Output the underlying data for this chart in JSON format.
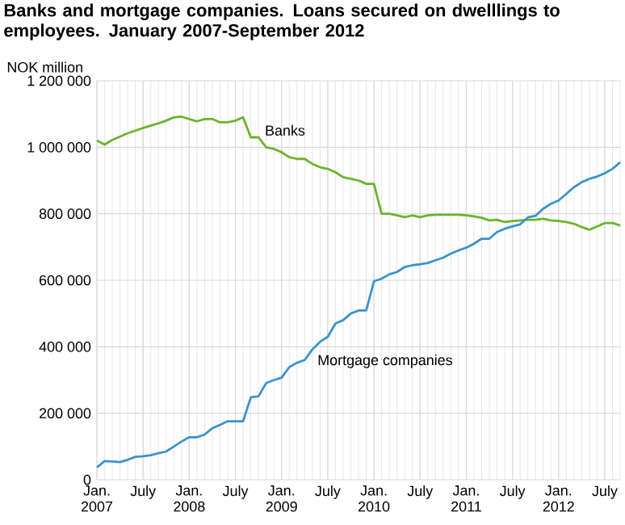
{
  "chart_data": {
    "type": "line",
    "title": "Banks and mortgage companies. Loans secured on dwelllings to employees. January 2007-September 2012",
    "ylabel": "NOK million",
    "x": [
      "2007-01",
      "2007-02",
      "2007-03",
      "2007-04",
      "2007-05",
      "2007-06",
      "2007-07",
      "2007-08",
      "2007-09",
      "2007-10",
      "2007-11",
      "2007-12",
      "2008-01",
      "2008-02",
      "2008-03",
      "2008-04",
      "2008-05",
      "2008-06",
      "2008-07",
      "2008-08",
      "2008-09",
      "2008-10",
      "2008-11",
      "2008-12",
      "2009-01",
      "2009-02",
      "2009-03",
      "2009-04",
      "2009-05",
      "2009-06",
      "2009-07",
      "2009-08",
      "2009-09",
      "2009-10",
      "2009-11",
      "2009-12",
      "2010-01",
      "2010-02",
      "2010-03",
      "2010-04",
      "2010-05",
      "2010-06",
      "2010-07",
      "2010-08",
      "2010-09",
      "2010-10",
      "2010-11",
      "2010-12",
      "2011-01",
      "2011-02",
      "2011-03",
      "2011-04",
      "2011-05",
      "2011-06",
      "2011-07",
      "2011-08",
      "2011-09",
      "2011-10",
      "2011-11",
      "2011-12",
      "2012-01",
      "2012-02",
      "2012-03",
      "2012-04",
      "2012-05",
      "2012-06",
      "2012-07",
      "2012-08",
      "2012-09"
    ],
    "series": [
      {
        "name": "Banks",
        "color": "#6ab42d",
        "values": [
          1020000,
          1008000,
          1022000,
          1032000,
          1042000,
          1050000,
          1058000,
          1065000,
          1072000,
          1080000,
          1090000,
          1092000,
          1085000,
          1078000,
          1085000,
          1085000,
          1075000,
          1075000,
          1080000,
          1090000,
          1030000,
          1030000,
          1000000,
          995000,
          985000,
          970000,
          965000,
          965000,
          950000,
          940000,
          935000,
          925000,
          910000,
          905000,
          900000,
          890000,
          890000,
          800000,
          800000,
          795000,
          790000,
          795000,
          790000,
          795000,
          797000,
          797000,
          797000,
          797000,
          795000,
          792000,
          788000,
          780000,
          782000,
          775000,
          778000,
          780000,
          782000,
          782000,
          785000,
          780000,
          778000,
          775000,
          770000,
          760000,
          752000,
          762000,
          772000,
          772000,
          765000
        ]
      },
      {
        "name": "Mortgage companies",
        "color": "#3a93cf",
        "values": [
          37000,
          56000,
          55000,
          53000,
          60000,
          69000,
          71000,
          74000,
          80000,
          85000,
          100000,
          115000,
          128000,
          128000,
          136000,
          155000,
          165000,
          176000,
          176000,
          176000,
          248000,
          251000,
          291000,
          300000,
          307000,
          339000,
          352000,
          360000,
          392000,
          415000,
          430000,
          470000,
          480000,
          500000,
          509000,
          509000,
          597000,
          605000,
          618000,
          625000,
          640000,
          645000,
          648000,
          652000,
          660000,
          668000,
          680000,
          690000,
          698000,
          710000,
          725000,
          725000,
          745000,
          755000,
          762000,
          768000,
          789000,
          794000,
          815000,
          830000,
          840000,
          860000,
          880000,
          895000,
          905000,
          912000,
          922000,
          935000,
          955000
        ]
      }
    ],
    "xlim": [
      "2007-01",
      "2012-09"
    ],
    "xticks": [
      {
        "value": "2007-01",
        "label": "Jan. 2007"
      },
      {
        "value": "2007-07",
        "label": "July"
      },
      {
        "value": "2008-01",
        "label": "Jan. 2008"
      },
      {
        "value": "2008-07",
        "label": "July"
      },
      {
        "value": "2009-01",
        "label": "Jan. 2009"
      },
      {
        "value": "2009-07",
        "label": "July"
      },
      {
        "value": "2010-01",
        "label": "Jan. 2010"
      },
      {
        "value": "2010-07",
        "label": "July"
      },
      {
        "value": "2011-01",
        "label": "Jan. 2011"
      },
      {
        "value": "2011-07",
        "label": "July"
      },
      {
        "value": "2012-01",
        "label": "Jan. 2012"
      },
      {
        "value": "2012-07",
        "label": "July"
      }
    ],
    "ylim": [
      0,
      1200000
    ],
    "yticks": [
      0,
      {
        "value": 200000,
        "label": "200 000"
      },
      {
        "value": 400000,
        "label": "400 000"
      },
      {
        "value": 600000,
        "label": "600 000"
      },
      {
        "value": 800000,
        "label": "800 000"
      },
      {
        "value": 1000000,
        "label": "1 000 000"
      },
      {
        "value": 1200000,
        "label": "1 200 000"
      }
    ],
    "grid": true,
    "legend": false,
    "marker": "none",
    "line_style": "solid"
  }
}
